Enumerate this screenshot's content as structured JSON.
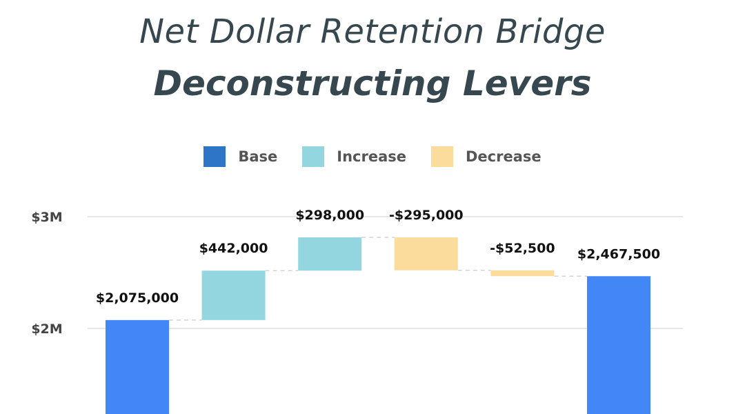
{
  "header": {
    "title_line1": "Net Dollar Retention Bridge",
    "title_line2": "Deconstructing Levers"
  },
  "legend": [
    {
      "label": "Base",
      "color": "#2e75c8"
    },
    {
      "label": "Increase",
      "color": "#94d6e0"
    },
    {
      "label": "Decrease",
      "color": "#fcdc9c"
    }
  ],
  "colors": {
    "base": "#4287f5",
    "increase": "#94d6e0",
    "decrease": "#fcdc9c",
    "grid": "#dddddd",
    "connector": "#d4d4d4"
  },
  "chart_data": {
    "type": "bar",
    "subtype": "waterfall",
    "ylim": [
      0,
      3000000
    ],
    "yticks": [
      {
        "value": 2000000,
        "label": "$2M"
      },
      {
        "value": 3000000,
        "label": "$3M"
      }
    ],
    "grid": true,
    "legend_position": "top-center",
    "steps": [
      {
        "kind": "base",
        "value": 2075000,
        "label": "$2,075,000"
      },
      {
        "kind": "increase",
        "value": 442000,
        "label": "$442,000"
      },
      {
        "kind": "increase",
        "value": 298000,
        "label": "$298,000"
      },
      {
        "kind": "decrease",
        "value": -295000,
        "label": "-$295,000"
      },
      {
        "kind": "decrease",
        "value": -52500,
        "label": "-$52,500"
      },
      {
        "kind": "base",
        "value": 2467500,
        "label": "$2,467,500"
      }
    ]
  }
}
